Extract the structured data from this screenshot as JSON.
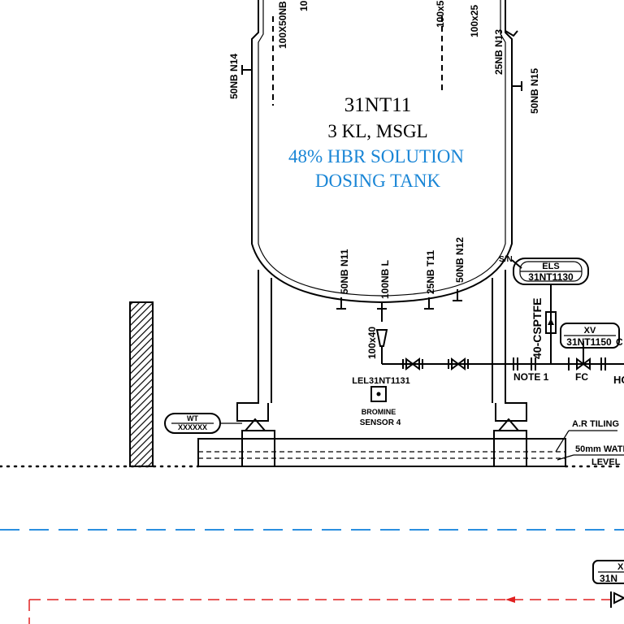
{
  "tank": {
    "tag": "31NT11",
    "capacity": "3 KL, MSGL",
    "service_line1": "48% HBR  SOLUTION",
    "service_line2": "DOSING TANK"
  },
  "nozzles": {
    "n14": "50NB N14",
    "n13": "25NB N13",
    "n15": "50NB N15",
    "top1": "100X50NB",
    "top2": "100x5",
    "top3": "100x25",
    "top_misc": "10",
    "n11": "50NB N11",
    "l": "100NB L",
    "t11": "25NB T11",
    "n12": "50NB N12",
    "sn": "S/N"
  },
  "instruments": {
    "els_func": "ELS",
    "els_tag": "31NT1130",
    "xv_func": "XV",
    "xv_tag": "31NT1150",
    "xv_side": "C",
    "wt_func": "WT",
    "wt_tag": "XXXXXX",
    "lower_right_tag": "31N",
    "lower_right_func": "X"
  },
  "piping": {
    "reducer": "100x40",
    "line_size": "40-CSPTFE",
    "note": "NOTE 1",
    "fc": "FC",
    "ho": "HO"
  },
  "sensor": {
    "tag": "LEL31NT1131",
    "line1": "BROMINE",
    "line2": "SENSOR 4"
  },
  "foundation": {
    "tiling": "A.R TILING",
    "water_label1": "50mm WATE",
    "water_label2": "LEVEL"
  },
  "colors": {
    "line": "#000000",
    "text_blue": "#1a86d6",
    "boundary_blue": "#2b8fe0",
    "boundary_red": "#e02020"
  }
}
